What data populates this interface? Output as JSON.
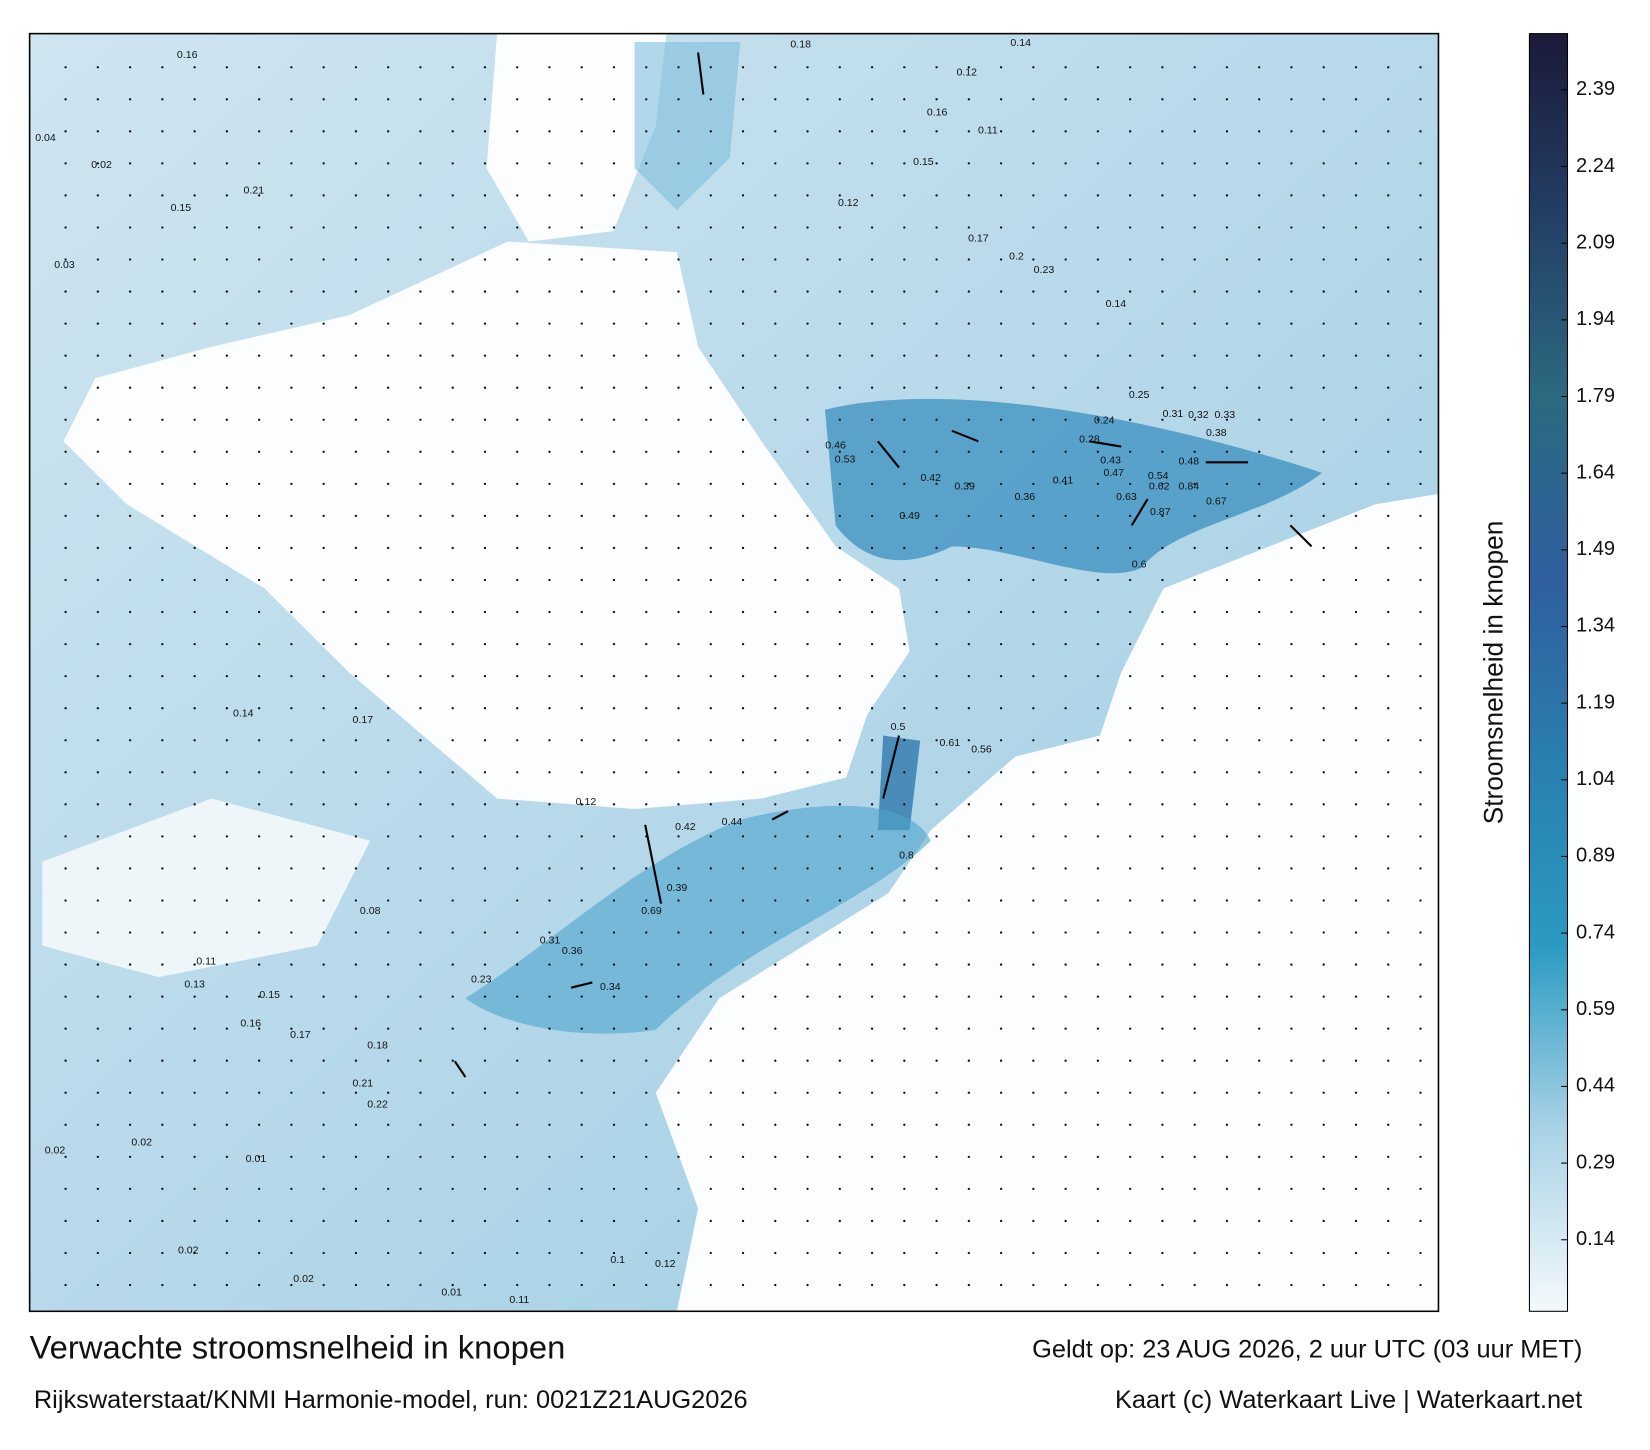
{
  "title": "Verwachte stroomsnelheid in knopen",
  "model_run": "Rijkswaterstaat/KNMI Harmonie-model, run: 0021Z21AUG2026",
  "valid_time": "Geldt op: 23 AUG 2026, 2 uur UTC (03 uur MET)",
  "credit": "Kaart (c) Waterkaart Live | Waterkaart.net",
  "colorbar": {
    "label": "Stroomsnelheid in knopen",
    "lim": [
      0,
      2.5
    ],
    "ticks": [
      0.14,
      0.29,
      0.44,
      0.59,
      0.74,
      0.89,
      1.04,
      1.19,
      1.34,
      1.49,
      1.64,
      1.79,
      1.94,
      2.09,
      2.24,
      2.39
    ],
    "colors": [
      "#f4f9fc",
      "#a9d2e6",
      "#2b9ac2",
      "#2a7fb0",
      "#2f5f9f",
      "#2b6a80",
      "#233f66",
      "#1b1a38"
    ]
  },
  "speed_labels": [
    0.84,
    0.87,
    0.62,
    0.54,
    0.48,
    0.63,
    0.67,
    0.6,
    0.5,
    0.61,
    0.56,
    0.8,
    0.69,
    0.39,
    0.44,
    0.42,
    0.34,
    0.36,
    0.31,
    0.23,
    0.12,
    0.18,
    0.14,
    0.12,
    0.16,
    0.11,
    0.15,
    0.12,
    0.17,
    0.2,
    0.23,
    0.14,
    0.25,
    0.31,
    0.32,
    0.33,
    0.38,
    0.42,
    0.39,
    0.46,
    0.53,
    0.49,
    0.41,
    0.36,
    0.43,
    0.47,
    0.28,
    0.24,
    0.16,
    0.15,
    0.21,
    0.17,
    0.14,
    0.11,
    0.13,
    0.15,
    0.16,
    0.17,
    0.18,
    0.21,
    0.22,
    0.02,
    0.02,
    0.01,
    0.02,
    0.02,
    0.01,
    0.11,
    0.12,
    0.1,
    0.03,
    0.04,
    0.02,
    0.08
  ]
}
